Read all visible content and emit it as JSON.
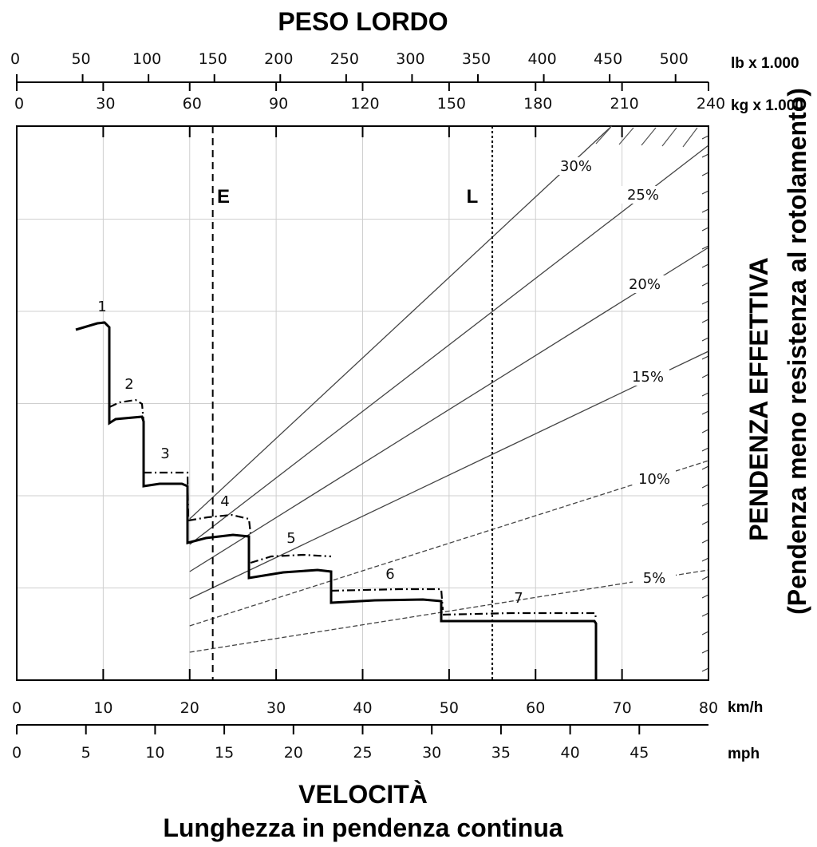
{
  "titles": {
    "top": "PESO LORDO",
    "bottom": "VELOCITÀ",
    "bottom_sub": "Lunghezza in pendenza continua",
    "right": "PENDENZA EFFETTIVA",
    "right_sub": "(Pendenza meno resistenza al rotolamento)"
  },
  "units": {
    "lb": "lb x 1.000",
    "kg": "kg x 1.000",
    "kmh": "km/h",
    "mph": "mph"
  },
  "chart_data": {
    "type": "line",
    "axes": {
      "speed_kmh": {
        "range": [
          0,
          80
        ],
        "ticks": [
          "0",
          "10",
          "20",
          "30",
          "40",
          "50",
          "60",
          "70",
          "80"
        ]
      },
      "speed_mph": {
        "range": [
          0,
          50
        ],
        "ticks": [
          "0",
          "5",
          "10",
          "15",
          "20",
          "25",
          "30",
          "35",
          "40",
          "45"
        ]
      },
      "weight_lb": {
        "range": [
          0,
          525
        ],
        "ticks": [
          "0",
          "50",
          "100",
          "150",
          "200",
          "250",
          "300",
          "350",
          "400",
          "450",
          "500"
        ]
      },
      "weight_kg": {
        "range": [
          0,
          240
        ],
        "ticks": [
          "0",
          "30",
          "60",
          "90",
          "120",
          "150",
          "180",
          "210",
          "240"
        ]
      }
    },
    "grid": true,
    "grade_lines": [
      {
        "label": "5%",
        "start_kmh": 20,
        "end_kmh": 80
      },
      {
        "label": "10%",
        "start_kmh": 20,
        "end_kmh": 80
      },
      {
        "label": "15%",
        "start_kmh": 20,
        "end_kmh": 80
      },
      {
        "label": "20%",
        "start_kmh": 20,
        "end_kmh": 80
      },
      {
        "label": "25%",
        "start_kmh": 20,
        "end_kmh": 80
      },
      {
        "label": "30%",
        "start_kmh": 20,
        "end_kmh": 80
      }
    ],
    "markers": [
      {
        "label": "E",
        "weight_kg": 68,
        "style": "dashed"
      },
      {
        "label": "L",
        "weight_kg": 165,
        "style": "dotted"
      }
    ],
    "gears": [
      {
        "label": "1",
        "range_kmh": [
          7,
          11
        ]
      },
      {
        "label": "2",
        "range_kmh": [
          11,
          14.5
        ]
      },
      {
        "label": "3",
        "range_kmh": [
          14.5,
          20
        ]
      },
      {
        "label": "4",
        "range_kmh": [
          20,
          27
        ]
      },
      {
        "label": "5",
        "range_kmh": [
          27,
          36.5
        ]
      },
      {
        "label": "6",
        "range_kmh": [
          36.5,
          49.5
        ]
      },
      {
        "label": "7",
        "range_kmh": [
          49.5,
          67
        ]
      }
    ]
  }
}
